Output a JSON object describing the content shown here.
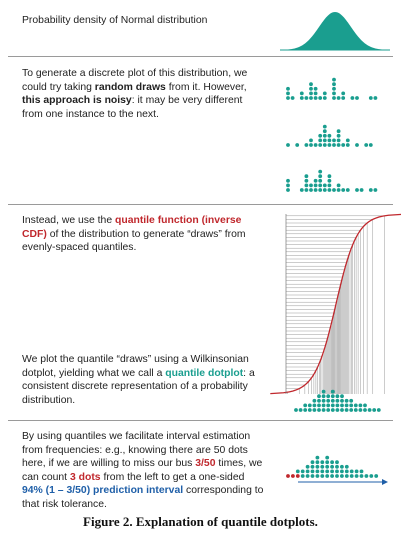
{
  "panel1": {
    "title": "Probability density of Normal distribution"
  },
  "panel2": {
    "t1": "To generate a discrete plot of this distribution, we could try taking ",
    "b1": "random draws",
    "t2": " from it. However, ",
    "b2": "this approach is noisy",
    "t3": ": it may be very different from one instance to the next."
  },
  "panel3": {
    "t1": "Instead, we use the ",
    "r1": "quantile function (inverse CDF)",
    "t2": " of the distribution to generate “draws” from evenly-spaced quantiles."
  },
  "panel4": {
    "t1": "We plot the quantile “draws” using a Wilkinsonian dotplot, yielding what we call a ",
    "g1": "quantile dotplot",
    "t2": ": a consistent discrete representation of a probability distribution."
  },
  "panel5": {
    "t1": "By using quantiles we facilitate interval estimation from frequencies: e.g., knowing there are 50 dots here, if we are willing to miss our bus ",
    "r1": "3/50",
    "t2": " times, we can count ",
    "r2": "3 dots",
    "t3": " from the left to get a one-sided ",
    "bl1": "94% (1 – 3/50) prediction interval",
    "t4": " corresponding to that risk tolerance."
  },
  "caption": "Figure 2. Explanation of quantile dotplots.",
  "colors": {
    "teal": "#1a9e8f",
    "red": "#c0282d",
    "blue": "#1f5fa8",
    "grey": "#9a9a9a"
  },
  "chart_data": [
    {
      "type": "area",
      "name": "normal-density"
    },
    {
      "type": "scatter",
      "name": "random-draw-dotplots",
      "series": [
        {
          "name": "",
          "values": [
            3,
            1,
            0,
            2,
            1,
            4,
            3,
            1,
            2,
            0,
            5,
            1,
            2,
            0,
            1,
            1,
            0,
            0,
            1,
            1
          ]
        },
        {
          "name": "",
          "values": [
            1,
            0,
            1,
            0,
            1,
            2,
            1,
            3,
            5,
            3,
            2,
            4,
            1,
            2,
            0,
            1,
            0,
            1,
            1,
            0
          ]
        },
        {
          "name": "",
          "values": [
            3,
            0,
            0,
            1,
            4,
            2,
            3,
            5,
            2,
            4,
            1,
            2,
            1,
            1,
            0,
            1,
            1,
            0,
            1,
            1
          ]
        }
      ]
    },
    {
      "type": "line",
      "name": "quantile-function",
      "quantiles": 50
    },
    {
      "type": "scatter",
      "name": "quantile-dotplot",
      "counts": [
        1,
        1,
        2,
        2,
        3,
        4,
        5,
        4,
        5,
        4,
        4,
        3,
        3,
        2,
        2,
        2,
        1,
        1,
        1
      ],
      "total": 50
    },
    {
      "type": "scatter",
      "name": "interval-dotplot",
      "counts": [
        1,
        1,
        2,
        2,
        3,
        4,
        5,
        4,
        5,
        4,
        4,
        3,
        3,
        2,
        2,
        2,
        1,
        1,
        1
      ],
      "excluded": 3
    }
  ]
}
